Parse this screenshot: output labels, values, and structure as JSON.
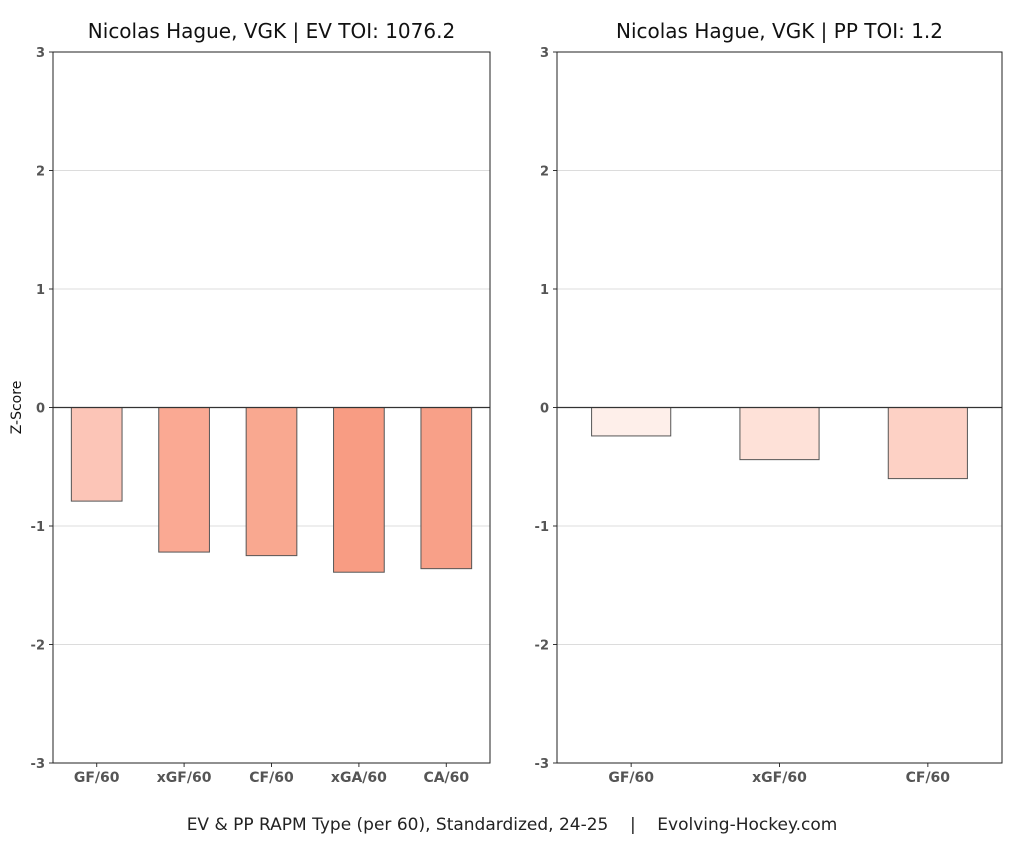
{
  "caption": "EV & PP RAPM Type (per 60), Standardized, 24-25    |    Evolving-Hockey.com",
  "chart_data": [
    {
      "type": "bar",
      "title": "Nicolas Hague, VGK  |  EV TOI: 1076.2",
      "ylabel": "Z-Score",
      "xlabel": "",
      "ylim": [
        -3,
        3
      ],
      "yticks": [
        -3,
        -2,
        -1,
        0,
        1,
        2,
        3
      ],
      "grid": true,
      "categories": [
        "GF/60",
        "xGF/60",
        "CF/60",
        "xGA/60",
        "CA/60"
      ],
      "values": [
        -0.79,
        -1.22,
        -1.25,
        -1.39,
        -1.36
      ],
      "colors": [
        "#fcc5b7",
        "#faa993",
        "#f9a890",
        "#f89c83",
        "#f8a088"
      ]
    },
    {
      "type": "bar",
      "title": "Nicolas Hague, VGK  |  PP TOI: 1.2",
      "ylabel": "",
      "xlabel": "",
      "ylim": [
        -3,
        3
      ],
      "yticks": [
        -3,
        -2,
        -1,
        0,
        1,
        2,
        3
      ],
      "grid": true,
      "categories": [
        "GF/60",
        "xGF/60",
        "CF/60"
      ],
      "values": [
        -0.24,
        -0.44,
        -0.6
      ],
      "colors": [
        "#feefea",
        "#fee1d8",
        "#fdd1c5"
      ]
    }
  ]
}
